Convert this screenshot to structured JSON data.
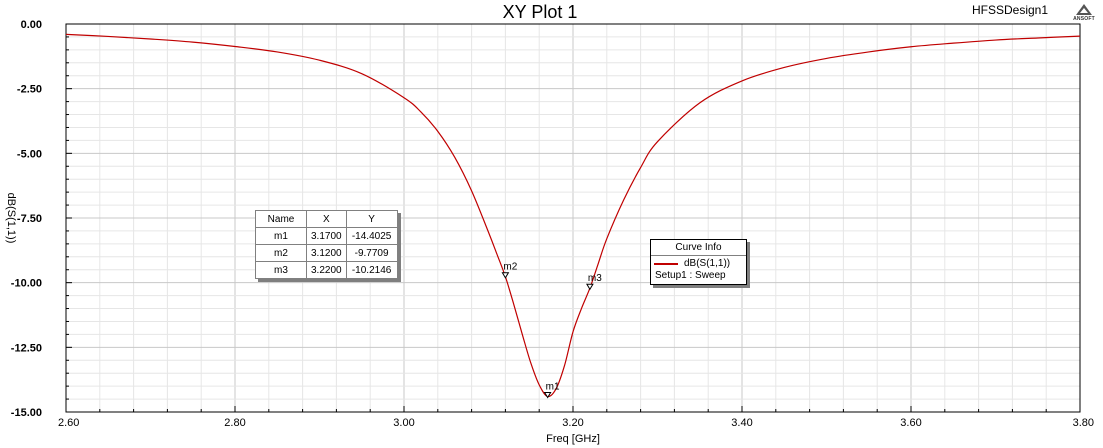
{
  "design_name": "HFSSDesign1",
  "logo_text": "ANSOFT",
  "chart_data": {
    "type": "line",
    "title": "XY Plot 1",
    "xlabel": "Freq [GHz]",
    "ylabel": "dB(S(1,1))",
    "xlim": [
      2.6,
      3.8
    ],
    "ylim": [
      -15.0,
      0.0
    ],
    "x_ticks": [
      "2.60",
      "2.80",
      "3.00",
      "3.20",
      "3.40",
      "3.60",
      "3.80"
    ],
    "y_ticks": [
      "0.00",
      "-2.50",
      "-5.00",
      "-7.50",
      "-10.00",
      "-12.50",
      "-15.00"
    ],
    "grid": true,
    "series": [
      {
        "name": "dB(S(1,1))",
        "color": "#c00000",
        "x": [
          2.6,
          2.65,
          2.7,
          2.75,
          2.8,
          2.85,
          2.9,
          2.95,
          3.0,
          3.02,
          3.04,
          3.06,
          3.08,
          3.1,
          3.11,
          3.12,
          3.13,
          3.14,
          3.15,
          3.16,
          3.17,
          3.18,
          3.19,
          3.2,
          3.21,
          3.22,
          3.23,
          3.24,
          3.26,
          3.28,
          3.3,
          3.35,
          3.4,
          3.45,
          3.5,
          3.55,
          3.6,
          3.65,
          3.7,
          3.75,
          3.8
        ],
        "y": [
          -0.4,
          -0.48,
          -0.58,
          -0.7,
          -0.87,
          -1.08,
          -1.4,
          -1.92,
          -2.85,
          -3.4,
          -4.15,
          -5.15,
          -6.45,
          -8.05,
          -8.9,
          -9.77,
          -10.85,
          -12.0,
          -13.1,
          -13.95,
          -14.4,
          -14.1,
          -13.2,
          -11.9,
          -11.0,
          -10.21,
          -9.25,
          -8.3,
          -6.8,
          -5.55,
          -4.55,
          -3.05,
          -2.2,
          -1.68,
          -1.33,
          -1.08,
          -0.88,
          -0.74,
          -0.62,
          -0.54,
          -0.47
        ]
      }
    ],
    "markers": [
      {
        "name": "m1",
        "x": 3.17,
        "y": -14.4025,
        "x_text": "3.1700",
        "y_text": "-14.4025"
      },
      {
        "name": "m2",
        "x": 3.12,
        "y": -9.7709,
        "x_text": "3.1200",
        "y_text": "-9.7709"
      },
      {
        "name": "m3",
        "x": 3.22,
        "y": -10.2146,
        "x_text": "3.2200",
        "y_text": "-10.2146"
      }
    ],
    "marker_table": {
      "headers": [
        "Name",
        "X",
        "Y"
      ]
    },
    "legend": {
      "title": "Curve Info",
      "entries": [
        {
          "label": "dB(S(1,1))",
          "sub": "Setup1 : Sweep",
          "color": "#c00000"
        }
      ]
    }
  }
}
